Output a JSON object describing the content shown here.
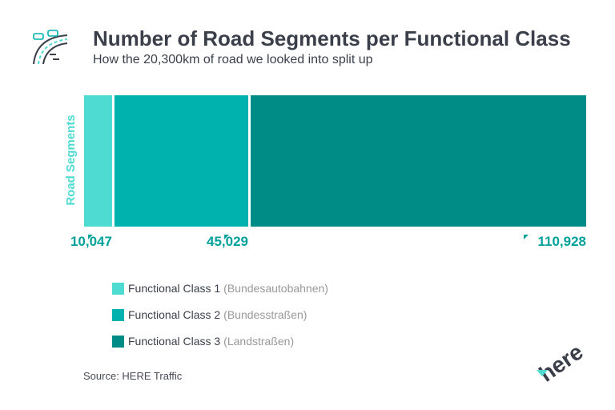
{
  "header": {
    "title": "Number of Road Segments per Functional Class",
    "subtitle": "How the 20,300km of road we looked into split up"
  },
  "chart_data": {
    "type": "bar",
    "orientation": "horizontal-stacked",
    "categories": [
      "Road Segments"
    ],
    "ylabel": "Road Segments",
    "series": [
      {
        "name": "Functional Class 1",
        "note": "(Bundesautobahnen)",
        "values": [
          10047
        ],
        "label": "10,047",
        "color": "#4ddbd2"
      },
      {
        "name": "Functional Class 2",
        "note": "(Bundesstraßen)",
        "values": [
          45029
        ],
        "label": "45,029",
        "color": "#00b2ad"
      },
      {
        "name": "Functional Class 3",
        "note": "(Landstraßen)",
        "values": [
          110928
        ],
        "label": "110,928",
        "color": "#008c86"
      }
    ],
    "legend_position": "bottom-left"
  },
  "footer": {
    "source": "Source: HERE Traffic",
    "logo_text": "here"
  },
  "colors": {
    "text": "#3a3f4a",
    "label": "#00a19b",
    "muted": "#999999"
  }
}
